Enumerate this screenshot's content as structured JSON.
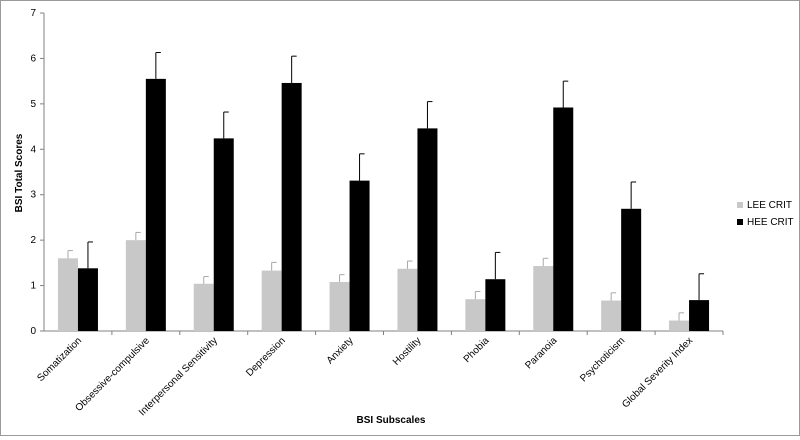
{
  "chart_data": {
    "type": "bar",
    "title": "",
    "xlabel": "BSI Subscales",
    "ylabel": "BSI Total Scores",
    "ylim": [
      0,
      7
    ],
    "yticks": [
      0,
      1,
      2,
      3,
      4,
      5,
      6,
      7
    ],
    "grid": false,
    "legend_position": "right",
    "error_bars": true,
    "categories": [
      "Somatization",
      "Obsessive-compulsive",
      "Interpersonal Sensitivity",
      "Depression",
      "Anxiety",
      "Hostility",
      "Phobia",
      "Paranoia",
      "Psychoticism",
      "Global Severity Index"
    ],
    "series": [
      {
        "name": "LEE CRIT",
        "color": "#c8c8c8",
        "values": [
          1.6,
          2.0,
          1.04,
          1.33,
          1.08,
          1.37,
          0.7,
          1.43,
          0.67,
          0.23
        ],
        "errors": [
          0.17,
          0.17,
          0.16,
          0.18,
          0.16,
          0.17,
          0.17,
          0.17,
          0.17,
          0.17
        ]
      },
      {
        "name": "HEE CRIT",
        "color": "#000000",
        "values": [
          1.38,
          5.55,
          4.24,
          5.46,
          3.31,
          4.46,
          1.14,
          4.92,
          2.69,
          0.68
        ],
        "errors": [
          0.58,
          0.58,
          0.58,
          0.59,
          0.59,
          0.59,
          0.59,
          0.58,
          0.59,
          0.58
        ]
      }
    ]
  }
}
